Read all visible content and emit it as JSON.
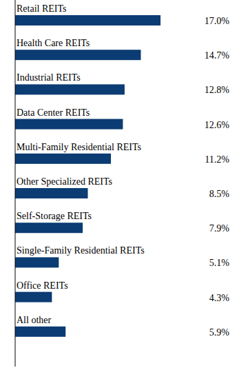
{
  "chart_data": {
    "type": "bar",
    "orientation": "horizontal",
    "categories": [
      "Retail REITs",
      "Health Care REITs",
      "Industrial REITs",
      "Data Center REITs",
      "Multi-Family Residential REITs",
      "Other Specialized REITs",
      "Self-Storage REITs",
      "Single-Family Residential REITs",
      "Office REITs",
      "All other"
    ],
    "values": [
      17.0,
      14.7,
      12.8,
      12.6,
      11.2,
      8.5,
      7.9,
      5.1,
      4.3,
      5.9
    ],
    "value_labels": [
      "17.0%",
      "14.7%",
      "12.8%",
      "12.6%",
      "11.2%",
      "8.5%",
      "7.9%",
      "5.1%",
      "4.3%",
      "5.9%"
    ],
    "color": "#0b3c73",
    "xlim": [
      0,
      17
    ],
    "data_labels": true,
    "tick_labels": "y",
    "grid": false
  }
}
